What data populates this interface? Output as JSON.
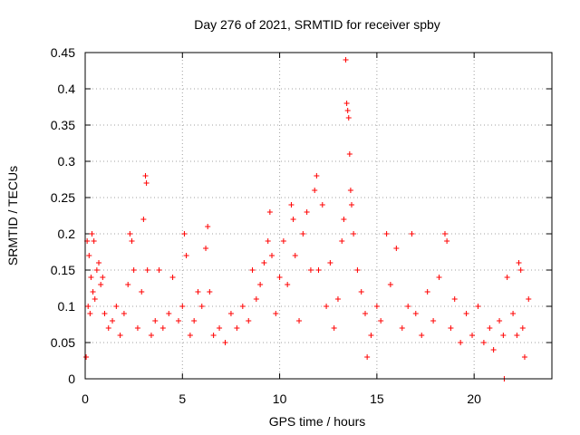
{
  "chart_data": {
    "type": "scatter",
    "title": "Day 276 of 2021, SRMTID for receiver spby",
    "xlabel": "GPS time / hours",
    "ylabel": "SRMTID / TECUs",
    "xlim": [
      0,
      24
    ],
    "ylim": [
      0,
      0.45
    ],
    "xticks": [
      "0",
      "5",
      "10",
      "15",
      "20"
    ],
    "yticks": [
      "0",
      "0.05",
      "0.1",
      "0.15",
      "0.2",
      "0.25",
      "0.3",
      "0.35",
      "0.4",
      "0.45"
    ],
    "grid": true,
    "marker": "+",
    "series": [
      {
        "name": "SRMTID",
        "color": "#ff0000",
        "points": [
          [
            0.05,
            0.03
          ],
          [
            0.1,
            0.19
          ],
          [
            0.15,
            0.1
          ],
          [
            0.2,
            0.17
          ],
          [
            0.25,
            0.09
          ],
          [
            0.3,
            0.14
          ],
          [
            0.35,
            0.2
          ],
          [
            0.4,
            0.12
          ],
          [
            0.45,
            0.19
          ],
          [
            0.5,
            0.11
          ],
          [
            0.6,
            0.15
          ],
          [
            0.7,
            0.16
          ],
          [
            0.8,
            0.13
          ],
          [
            0.9,
            0.14
          ],
          [
            1.0,
            0.09
          ],
          [
            1.2,
            0.07
          ],
          [
            1.4,
            0.08
          ],
          [
            1.6,
            0.1
          ],
          [
            1.8,
            0.06
          ],
          [
            2.0,
            0.09
          ],
          [
            2.2,
            0.13
          ],
          [
            2.3,
            0.2
          ],
          [
            2.4,
            0.19
          ],
          [
            2.5,
            0.15
          ],
          [
            2.7,
            0.07
          ],
          [
            2.9,
            0.12
          ],
          [
            3.0,
            0.22
          ],
          [
            3.1,
            0.28
          ],
          [
            3.15,
            0.27
          ],
          [
            3.2,
            0.15
          ],
          [
            3.4,
            0.06
          ],
          [
            3.6,
            0.08
          ],
          [
            3.8,
            0.15
          ],
          [
            4.0,
            0.07
          ],
          [
            4.3,
            0.09
          ],
          [
            4.5,
            0.14
          ],
          [
            4.8,
            0.08
          ],
          [
            5.0,
            0.1
          ],
          [
            5.1,
            0.2
          ],
          [
            5.2,
            0.17
          ],
          [
            5.4,
            0.06
          ],
          [
            5.6,
            0.08
          ],
          [
            5.8,
            0.12
          ],
          [
            6.0,
            0.1
          ],
          [
            6.2,
            0.18
          ],
          [
            6.3,
            0.21
          ],
          [
            6.4,
            0.12
          ],
          [
            6.6,
            0.06
          ],
          [
            6.9,
            0.07
          ],
          [
            7.2,
            0.05
          ],
          [
            7.5,
            0.09
          ],
          [
            7.8,
            0.07
          ],
          [
            8.1,
            0.1
          ],
          [
            8.4,
            0.08
          ],
          [
            8.6,
            0.15
          ],
          [
            8.8,
            0.11
          ],
          [
            9.0,
            0.13
          ],
          [
            9.2,
            0.16
          ],
          [
            9.4,
            0.19
          ],
          [
            9.5,
            0.23
          ],
          [
            9.6,
            0.17
          ],
          [
            9.8,
            0.09
          ],
          [
            10.0,
            0.14
          ],
          [
            10.2,
            0.19
          ],
          [
            10.4,
            0.13
          ],
          [
            10.6,
            0.24
          ],
          [
            10.7,
            0.22
          ],
          [
            10.8,
            0.17
          ],
          [
            11.0,
            0.08
          ],
          [
            11.2,
            0.2
          ],
          [
            11.4,
            0.23
          ],
          [
            11.6,
            0.15
          ],
          [
            11.8,
            0.26
          ],
          [
            11.9,
            0.28
          ],
          [
            12.0,
            0.15
          ],
          [
            12.2,
            0.24
          ],
          [
            12.4,
            0.1
          ],
          [
            12.6,
            0.16
          ],
          [
            12.8,
            0.07
          ],
          [
            13.0,
            0.11
          ],
          [
            13.2,
            0.19
          ],
          [
            13.3,
            0.22
          ],
          [
            13.4,
            0.44
          ],
          [
            13.45,
            0.38
          ],
          [
            13.5,
            0.37
          ],
          [
            13.55,
            0.36
          ],
          [
            13.6,
            0.31
          ],
          [
            13.65,
            0.26
          ],
          [
            13.7,
            0.24
          ],
          [
            13.8,
            0.2
          ],
          [
            14.0,
            0.15
          ],
          [
            14.2,
            0.12
          ],
          [
            14.4,
            0.09
          ],
          [
            14.5,
            0.03
          ],
          [
            14.7,
            0.06
          ],
          [
            15.0,
            0.1
          ],
          [
            15.2,
            0.08
          ],
          [
            15.5,
            0.2
          ],
          [
            15.7,
            0.13
          ],
          [
            16.0,
            0.18
          ],
          [
            16.3,
            0.07
          ],
          [
            16.6,
            0.1
          ],
          [
            16.8,
            0.2
          ],
          [
            17.0,
            0.09
          ],
          [
            17.3,
            0.06
          ],
          [
            17.6,
            0.12
          ],
          [
            17.9,
            0.08
          ],
          [
            18.2,
            0.14
          ],
          [
            18.5,
            0.2
          ],
          [
            18.6,
            0.19
          ],
          [
            18.8,
            0.07
          ],
          [
            19.0,
            0.11
          ],
          [
            19.3,
            0.05
          ],
          [
            19.6,
            0.09
          ],
          [
            19.9,
            0.06
          ],
          [
            20.2,
            0.1
          ],
          [
            20.5,
            0.05
          ],
          [
            20.8,
            0.07
          ],
          [
            21.0,
            0.04
          ],
          [
            21.3,
            0.08
          ],
          [
            21.5,
            0.06
          ],
          [
            21.55,
            0.0
          ],
          [
            21.7,
            0.14
          ],
          [
            22.0,
            0.09
          ],
          [
            22.2,
            0.06
          ],
          [
            22.3,
            0.16
          ],
          [
            22.4,
            0.15
          ],
          [
            22.5,
            0.07
          ],
          [
            22.6,
            0.03
          ],
          [
            22.8,
            0.11
          ]
        ]
      }
    ]
  }
}
